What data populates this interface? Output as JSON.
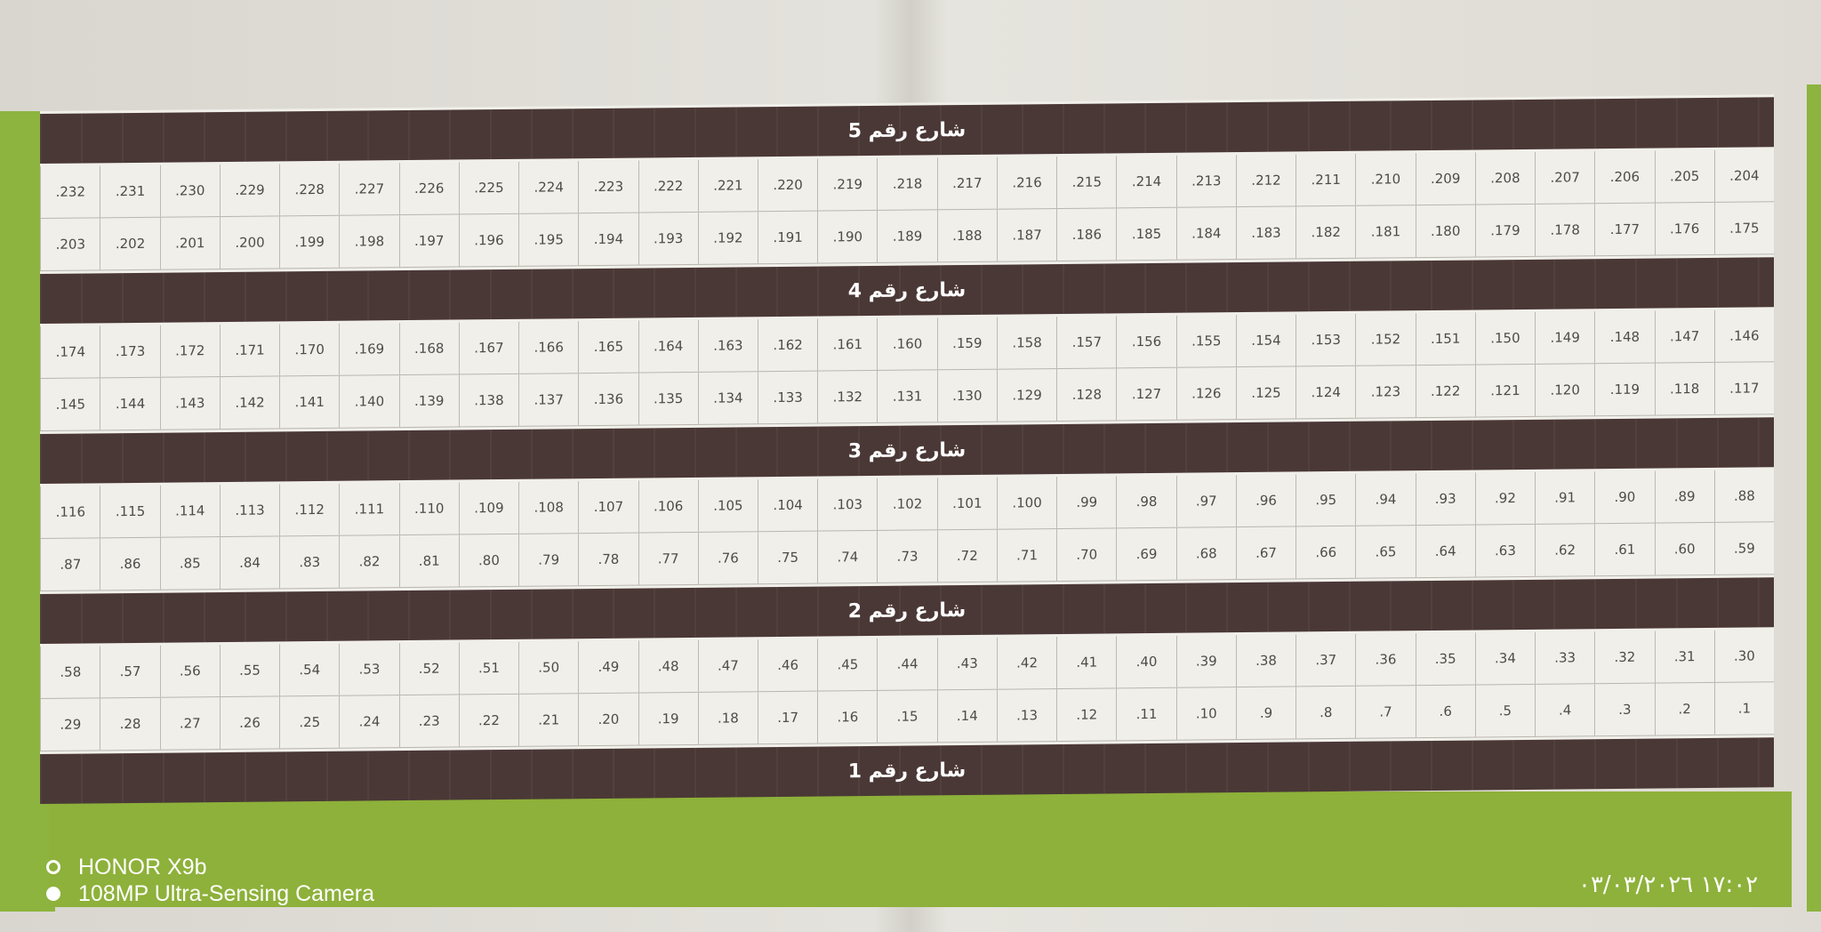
{
  "lot_prefix": ".",
  "streets": [
    {
      "label": "شارع رقم 5",
      "rows": [
        [
          204,
          205,
          206,
          207,
          208,
          209,
          210,
          211,
          212,
          213,
          214,
          215,
          216,
          217,
          218,
          219,
          220,
          221,
          222,
          223,
          224,
          225,
          226,
          227,
          228,
          229,
          230,
          231,
          232
        ],
        [
          175,
          176,
          177,
          178,
          179,
          180,
          181,
          182,
          183,
          184,
          185,
          186,
          187,
          188,
          189,
          190,
          191,
          192,
          193,
          194,
          195,
          196,
          197,
          198,
          199,
          200,
          201,
          202,
          203
        ]
      ]
    },
    {
      "label": "شارع رقم 4",
      "rows": [
        [
          146,
          147,
          148,
          149,
          150,
          151,
          152,
          153,
          154,
          155,
          156,
          157,
          158,
          159,
          160,
          161,
          162,
          163,
          164,
          165,
          166,
          167,
          168,
          169,
          170,
          171,
          172,
          173,
          174
        ],
        [
          117,
          118,
          119,
          120,
          121,
          122,
          123,
          124,
          125,
          126,
          127,
          128,
          129,
          130,
          131,
          132,
          133,
          134,
          135,
          136,
          137,
          138,
          139,
          140,
          141,
          142,
          143,
          144,
          145
        ]
      ]
    },
    {
      "label": "شارع رقم 3",
      "rows": [
        [
          88,
          89,
          90,
          91,
          92,
          93,
          94,
          95,
          96,
          97,
          98,
          99,
          100,
          101,
          102,
          103,
          104,
          105,
          106,
          107,
          108,
          109,
          110,
          111,
          112,
          113,
          114,
          115,
          116
        ],
        [
          59,
          60,
          61,
          62,
          63,
          64,
          65,
          66,
          67,
          68,
          69,
          70,
          71,
          72,
          73,
          74,
          75,
          76,
          77,
          78,
          79,
          80,
          81,
          82,
          83,
          84,
          85,
          86,
          87
        ]
      ]
    },
    {
      "label": "شارع رقم 2",
      "rows": [
        [
          30,
          31,
          32,
          33,
          34,
          35,
          36,
          37,
          38,
          39,
          40,
          41,
          42,
          43,
          44,
          45,
          46,
          47,
          48,
          49,
          50,
          51,
          52,
          53,
          54,
          55,
          56,
          57,
          58
        ],
        [
          1,
          2,
          3,
          4,
          5,
          6,
          7,
          8,
          9,
          10,
          11,
          12,
          13,
          14,
          15,
          16,
          17,
          18,
          19,
          20,
          21,
          22,
          23,
          24,
          25,
          26,
          27,
          28,
          29
        ]
      ]
    },
    {
      "label": "شارع رقم 1",
      "rows": []
    }
  ],
  "watermark": {
    "device": "HONOR X9b",
    "camera": "108MP Ultra-Sensing Camera"
  },
  "timestamp": "١٧:٠٢ ٠٣/٠٣/٢٠٢٦",
  "colors": {
    "street": "#4a3836",
    "green": "#8cb43f",
    "lot_bg": "#f1efea"
  }
}
